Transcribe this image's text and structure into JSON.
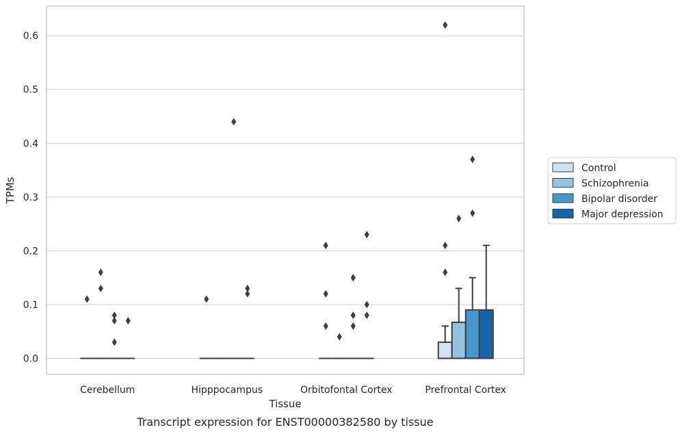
{
  "caption": "Transcript expression for ENST00000382580 by tissue",
  "chart_data": {
    "type": "box",
    "title": "",
    "xlabel": "Tissue",
    "ylabel": "TPMs",
    "ylim": [
      -0.03,
      0.655
    ],
    "yticks": [
      "0.0",
      "0.1",
      "0.2",
      "0.3",
      "0.4",
      "0.5",
      "0.6"
    ],
    "grid": true,
    "legend_position": "right",
    "categories": [
      "Cerebellum",
      "Hipppocampus",
      "Orbitofontal Cortex",
      "Prefrontal Cortex"
    ],
    "series": [
      {
        "name": "Control",
        "color": "#d0e1f2",
        "boxes": [
          {
            "q1": 0,
            "median": 0,
            "q3": 0,
            "whisker_low": 0,
            "whisker_high": 0,
            "outliers": [
              0.11
            ]
          },
          {
            "q1": 0,
            "median": 0,
            "q3": 0,
            "whisker_low": 0,
            "whisker_high": 0,
            "outliers": [
              0.11
            ]
          },
          {
            "q1": 0,
            "median": 0,
            "q3": 0,
            "whisker_low": 0,
            "whisker_high": 0,
            "outliers": [
              0.21,
              0.12,
              0.06
            ]
          },
          {
            "q1": 0,
            "median": 0,
            "q3": 0.03,
            "whisker_low": 0,
            "whisker_high": 0.06,
            "outliers": [
              0.62,
              0.21,
              0.16
            ]
          }
        ]
      },
      {
        "name": "Schizophrenia",
        "color": "#94c4df",
        "boxes": [
          {
            "q1": 0,
            "median": 0,
            "q3": 0,
            "whisker_low": 0,
            "whisker_high": 0,
            "outliers": [
              0.16,
              0.13
            ]
          },
          {
            "q1": 0,
            "median": 0,
            "q3": 0,
            "whisker_low": 0,
            "whisker_high": 0,
            "outliers": []
          },
          {
            "q1": 0,
            "median": 0,
            "q3": 0,
            "whisker_low": 0,
            "whisker_high": 0,
            "outliers": [
              0.04
            ]
          },
          {
            "q1": 0,
            "median": 0,
            "q3": 0.067,
            "whisker_low": 0,
            "whisker_high": 0.13,
            "outliers": [
              0.26
            ]
          }
        ]
      },
      {
        "name": "Bipolar disorder",
        "color": "#4a98c9",
        "boxes": [
          {
            "q1": 0,
            "median": 0,
            "q3": 0,
            "whisker_low": 0,
            "whisker_high": 0,
            "outliers": [
              0.08,
              0.07,
              0.03
            ]
          },
          {
            "q1": 0,
            "median": 0,
            "q3": 0,
            "whisker_low": 0,
            "whisker_high": 0,
            "outliers": [
              0.44
            ]
          },
          {
            "q1": 0,
            "median": 0,
            "q3": 0,
            "whisker_low": 0,
            "whisker_high": 0,
            "outliers": [
              0.15,
              0.08,
              0.06
            ]
          },
          {
            "q1": 0,
            "median": 0,
            "q3": 0.09,
            "whisker_low": 0,
            "whisker_high": 0.15,
            "outliers": [
              0.37,
              0.27
            ]
          }
        ]
      },
      {
        "name": "Major depression",
        "color": "#1764ab",
        "boxes": [
          {
            "q1": 0,
            "median": 0,
            "q3": 0,
            "whisker_low": 0,
            "whisker_high": 0,
            "outliers": [
              0.07
            ]
          },
          {
            "q1": 0,
            "median": 0,
            "q3": 0,
            "whisker_low": 0,
            "whisker_high": 0,
            "outliers": [
              0.13,
              0.12
            ]
          },
          {
            "q1": 0,
            "median": 0,
            "q3": 0,
            "whisker_low": 0,
            "whisker_high": 0,
            "outliers": [
              0.23,
              0.1,
              0.08
            ]
          },
          {
            "q1": 0,
            "median": 0,
            "q3": 0.09,
            "whisker_low": 0,
            "whisker_high": 0.21,
            "outliers": []
          }
        ]
      }
    ],
    "colors": {
      "frame": "#cccccc",
      "grid": "#cccccc",
      "edge": "#3d3d3d"
    }
  }
}
